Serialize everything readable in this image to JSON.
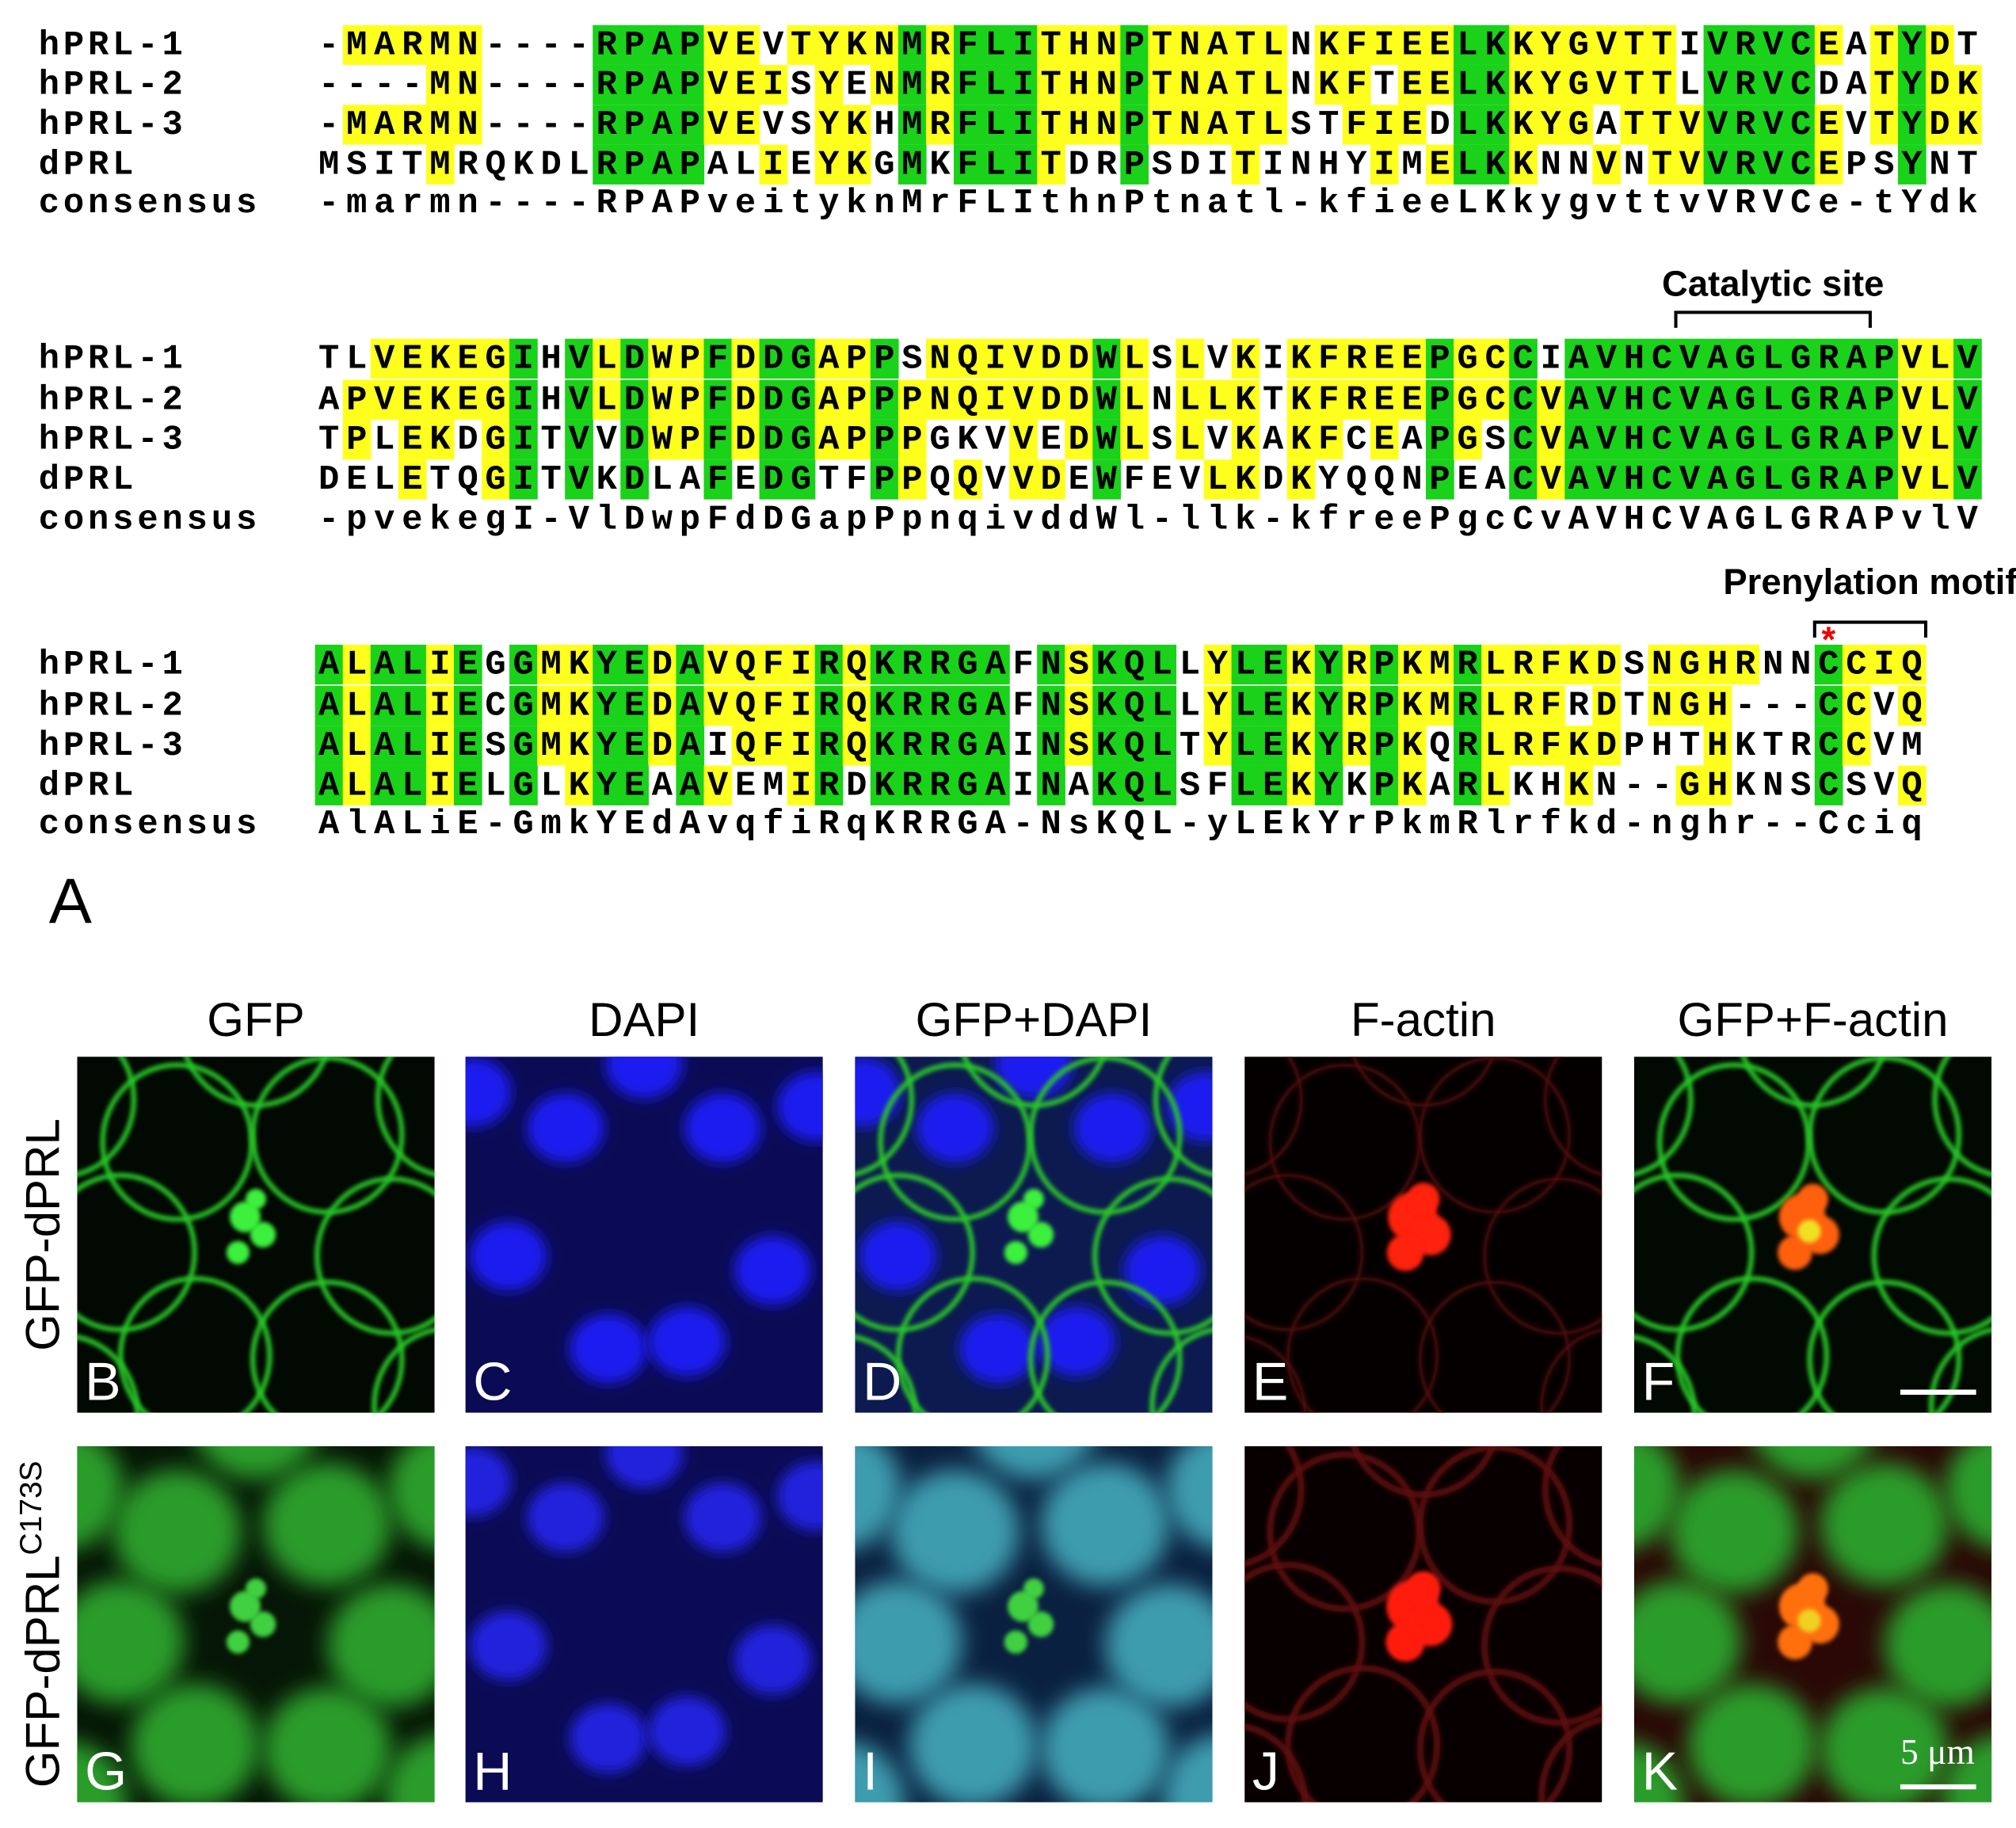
{
  "figure": {
    "alignment": {
      "blocks": [
        {
          "rows": [
            {
              "name": "hPRL-1",
              "sequence": "-MARMN----RPAPVEVTYKNMRFLITHNPTNATLNKFIEELKKYGVTTIVRVCEATYDT"
            },
            {
              "name": "hPRL-2",
              "sequence": "----MN----RPAPVEISYENMRFLITHNPTNATLNKFTEELKKYGVTTLVRVCDATYDK"
            },
            {
              "name": "hPRL-3",
              "sequence": "-MARMN----RPAPVEVSYKHMRFLITHNPTNATLSTFIEDLKKYGATTVVRVCEVTYDK"
            },
            {
              "name": "dPRL",
              "sequence": "MSITMRQKDLRPAPALIEYKGMKFLITDRPSDITINHYIMELKKNNVNTVVRVCEPSYNT"
            },
            {
              "name": "consensus",
              "sequence": "-marmn----RPAPveityknMrFLIthnPtnatl-kfieeLKkygvttvVRVCe-tYdk"
            }
          ]
        },
        {
          "annotation": "Catalytic site",
          "rows": [
            {
              "name": "hPRL-1",
              "sequence": "TLVEKEGIHVLDWPFDDGAPPSNQIVDDWLSLVKIKFREEPGCCIAVHCVAGLGRAPVLV"
            },
            {
              "name": "hPRL-2",
              "sequence": "APVEKEGIHVLDWPFDDGAPPPNQIVDDWLNLLKTKFREEPGCCVAVHCVAGLGRAPVLV"
            },
            {
              "name": "hPRL-3",
              "sequence": "TPLEKDGITVVDWPFDDGAPPPGKVVEDWLSLVKAKFCEAPGSCVAVHCVAGLGRAPVLV"
            },
            {
              "name": "dPRL",
              "sequence": "DELETQGITVKDLAFEDGTFPPQQVVDEWFEVLKDKYQQNPEACVAVHCVAGLGRAPVLV"
            },
            {
              "name": "consensus",
              "sequence": "-pvekegI-VlDwpFdDGapPpnqivddWl-llk-kfreePgcCvAVHCVAGLGRAPvlV"
            }
          ]
        },
        {
          "annotation": "Prenylation motif",
          "marker": "*",
          "rows": [
            {
              "name": "hPRL-1",
              "sequence": "ALALIEGGMKYEDAVQFIRQKRRGAFNSKQLLYLEKYRPKMRLRFKDSNGHRNNCCIQ"
            },
            {
              "name": "hPRL-2",
              "sequence": "ALALIECGMKYEDAVQFIRQKRRGAFNSKQLLYLEKYRPKMRLRFRDTNGH---CCVQ"
            },
            {
              "name": "hPRL-3",
              "sequence": "ALALIESGMKYEDAIQFIRQKRRGAINSKQLTYLEKYRPKQRLRFKDPHTHKTRCCVM"
            },
            {
              "name": "dPRL",
              "sequence": "ALALIELGLKYEAAVEMIRDKRRGAINAKQLSFLEKYKPKARLKHKN--GHKNSCSVQ"
            },
            {
              "name": "consensus",
              "sequence": "AlALiE-GmkYEdAvqfiRqKRRGA-NsKQL-yLEkYrPkmRlrfkd-nghr--Cciq"
            }
          ]
        }
      ]
    },
    "panel_a_label": "A",
    "columns": [
      "GFP",
      "DAPI",
      "GFP+DAPI",
      "F-actin",
      "GFP+F-actin"
    ],
    "rows": [
      {
        "label": "GFP-dPRL",
        "panels": [
          "B",
          "C",
          "D",
          "E",
          "F"
        ]
      },
      {
        "label": "GFP-dPRL",
        "superscript": "C173S",
        "panels": [
          "G",
          "H",
          "I",
          "J",
          "K"
        ]
      }
    ],
    "scale_bar": "5 μm"
  }
}
